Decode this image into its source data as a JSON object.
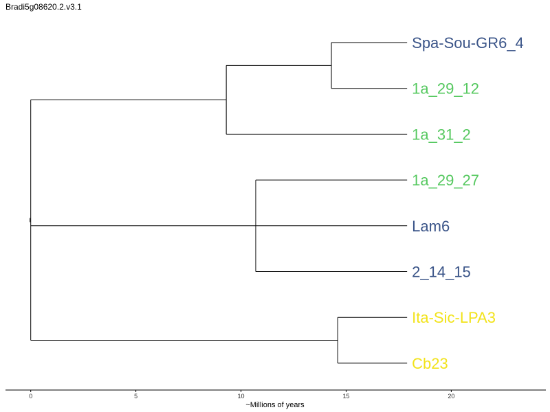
{
  "title": "Bradi5g08620.2.v3.1",
  "axis": {
    "label": "~Millions of years",
    "ticks": [
      0,
      5,
      10,
      15,
      20
    ],
    "range": [
      -1.2,
      24.5
    ]
  },
  "colors": {
    "blue": "#3a5488",
    "green": "#55c85f",
    "yellow": "#f2e31c",
    "branch": "#000000"
  },
  "tree": {
    "leaves": [
      {
        "name": "Spa-Sou-GR6_4",
        "color": "blue",
        "depth": 17.9
      },
      {
        "name": "1a_29_12",
        "color": "green",
        "depth": 17.9
      },
      {
        "name": "1a_31_2",
        "color": "green",
        "depth": 17.9
      },
      {
        "name": "1a_29_27",
        "color": "green",
        "depth": 17.9
      },
      {
        "name": "Lam6",
        "color": "blue",
        "depth": 17.9
      },
      {
        "name": "2_14_15",
        "color": "blue",
        "depth": 17.9
      },
      {
        "name": "Ita-Sic-LPA3",
        "color": "yellow",
        "depth": 17.9
      },
      {
        "name": "Cb23",
        "color": "yellow",
        "depth": 17.9
      }
    ],
    "internal_nodes": [
      {
        "id": "n1",
        "depth": 14.3,
        "children": [
          "leaf:0",
          "leaf:1"
        ]
      },
      {
        "id": "n2",
        "depth": 9.3,
        "children": [
          "node:n1",
          "leaf:2"
        ]
      },
      {
        "id": "n3",
        "depth": 10.7,
        "children": [
          "leaf:3",
          "leaf:4",
          "leaf:5"
        ]
      },
      {
        "id": "n4",
        "depth": 14.6,
        "children": [
          "leaf:6",
          "leaf:7"
        ]
      },
      {
        "id": "root",
        "depth": 0,
        "children": [
          "node:n2",
          "node:n3",
          "node:n4"
        ]
      }
    ]
  }
}
